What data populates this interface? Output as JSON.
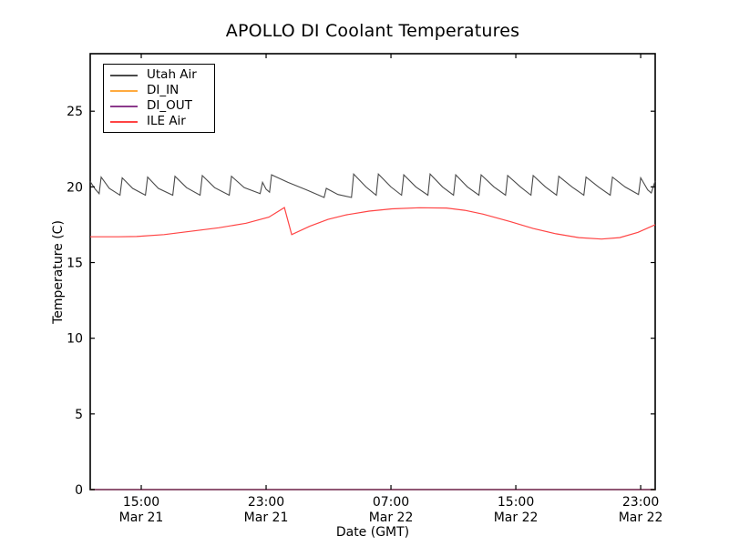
{
  "title": "APOLLO DI Coolant Temperatures",
  "xlabel": "Date (GMT)",
  "ylabel": "Temperature (C)",
  "chart_data": {
    "type": "line",
    "title": "APOLLO DI Coolant Temperatures",
    "xlabel": "Date (GMT)",
    "ylabel": "Temperature (C)",
    "grid": false,
    "legend_position": "upper left",
    "x_unit_hours_origin": "Mar 21 12:00",
    "xlim": [
      -0.27,
      35.93
    ],
    "ylim": [
      0,
      28.8
    ],
    "y_ticks": [
      0,
      5,
      10,
      15,
      20,
      25
    ],
    "x_ticks": [
      {
        "t": 3,
        "time": "15:00",
        "date": "Mar 21"
      },
      {
        "t": 11,
        "time": "23:00",
        "date": "Mar 21"
      },
      {
        "t": 19,
        "time": "07:00",
        "date": "Mar 22"
      },
      {
        "t": 27,
        "time": "15:00",
        "date": "Mar 22"
      },
      {
        "t": 35,
        "time": "23:00",
        "date": "Mar 22"
      }
    ],
    "series": [
      {
        "name": "Utah Air",
        "color": "#4a4a4a",
        "points": [
          [
            -0.27,
            20.35
          ],
          [
            0.05,
            19.85
          ],
          [
            0.3,
            19.55
          ],
          [
            0.43,
            20.65
          ],
          [
            0.95,
            19.9
          ],
          [
            1.64,
            19.45
          ],
          [
            1.78,
            20.6
          ],
          [
            2.45,
            19.9
          ],
          [
            3.27,
            19.45
          ],
          [
            3.41,
            20.65
          ],
          [
            4.1,
            19.9
          ],
          [
            5.02,
            19.45
          ],
          [
            5.16,
            20.7
          ],
          [
            5.9,
            19.95
          ],
          [
            6.77,
            19.45
          ],
          [
            6.91,
            20.75
          ],
          [
            7.7,
            19.95
          ],
          [
            8.64,
            19.45
          ],
          [
            8.78,
            20.7
          ],
          [
            9.6,
            19.95
          ],
          [
            10.62,
            19.55
          ],
          [
            10.77,
            20.3
          ],
          [
            11.0,
            19.85
          ],
          [
            11.22,
            19.65
          ],
          [
            11.35,
            20.8
          ],
          [
            12.4,
            20.3
          ],
          [
            13.6,
            19.8
          ],
          [
            14.72,
            19.3
          ],
          [
            14.86,
            19.9
          ],
          [
            15.6,
            19.5
          ],
          [
            16.47,
            19.3
          ],
          [
            16.61,
            20.85
          ],
          [
            17.4,
            20.0
          ],
          [
            18.05,
            19.45
          ],
          [
            18.19,
            20.85
          ],
          [
            19.0,
            20.0
          ],
          [
            19.68,
            19.45
          ],
          [
            19.82,
            20.8
          ],
          [
            20.6,
            20.0
          ],
          [
            21.37,
            19.45
          ],
          [
            21.51,
            20.85
          ],
          [
            22.3,
            20.0
          ],
          [
            23.01,
            19.45
          ],
          [
            23.15,
            20.8
          ],
          [
            23.9,
            20.0
          ],
          [
            24.64,
            19.45
          ],
          [
            24.78,
            20.8
          ],
          [
            25.6,
            20.0
          ],
          [
            26.34,
            19.45
          ],
          [
            26.48,
            20.75
          ],
          [
            27.3,
            20.0
          ],
          [
            27.97,
            19.45
          ],
          [
            28.11,
            20.75
          ],
          [
            28.9,
            20.0
          ],
          [
            29.61,
            19.45
          ],
          [
            29.75,
            20.7
          ],
          [
            30.6,
            20.0
          ],
          [
            31.36,
            19.45
          ],
          [
            31.5,
            20.65
          ],
          [
            32.3,
            20.0
          ],
          [
            33.05,
            19.45
          ],
          [
            33.19,
            20.65
          ],
          [
            34.0,
            20.0
          ],
          [
            34.86,
            19.5
          ],
          [
            35.0,
            20.6
          ],
          [
            35.45,
            19.8
          ],
          [
            35.68,
            19.6
          ],
          [
            35.93,
            20.4
          ]
        ]
      },
      {
        "name": "DI_IN",
        "color": "#ffab40",
        "points": [
          [
            -0.27,
            0
          ],
          [
            35.93,
            0
          ]
        ]
      },
      {
        "name": "DI_OUT",
        "color": "#8b3a8b",
        "points": [
          [
            -0.27,
            0
          ],
          [
            35.93,
            0
          ]
        ]
      },
      {
        "name": "ILE Air",
        "color": "#ff4444",
        "points": [
          [
            -0.27,
            16.7
          ],
          [
            1.54,
            16.7
          ],
          [
            2.71,
            16.72
          ],
          [
            4.46,
            16.85
          ],
          [
            5.63,
            17.0
          ],
          [
            7.96,
            17.3
          ],
          [
            9.72,
            17.6
          ],
          [
            11.18,
            18.0
          ],
          [
            12.17,
            18.63
          ],
          [
            12.64,
            16.85
          ],
          [
            13.8,
            17.4
          ],
          [
            14.97,
            17.85
          ],
          [
            16.14,
            18.15
          ],
          [
            17.6,
            18.4
          ],
          [
            19.06,
            18.55
          ],
          [
            20.81,
            18.62
          ],
          [
            22.56,
            18.6
          ],
          [
            23.73,
            18.45
          ],
          [
            24.9,
            18.2
          ],
          [
            26.65,
            17.7
          ],
          [
            28.11,
            17.25
          ],
          [
            29.57,
            16.9
          ],
          [
            31.03,
            16.65
          ],
          [
            32.49,
            16.55
          ],
          [
            33.66,
            16.65
          ],
          [
            34.83,
            17.0
          ],
          [
            35.93,
            17.5
          ]
        ]
      }
    ]
  }
}
